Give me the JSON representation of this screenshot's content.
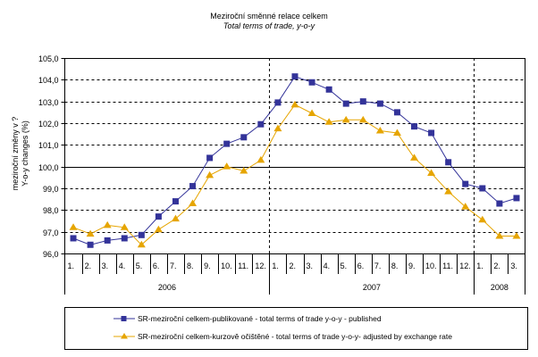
{
  "chart_data": {
    "type": "line",
    "title": "Meziroční směnné relace celkem",
    "subtitle": "Total terms of trade, y-o-y",
    "ylabel_lines": [
      "meziroční změny v ?",
      "Y-o-y changes (%)"
    ],
    "xlabel": "",
    "ylim": [
      96,
      105
    ],
    "yticks": [
      "96,0",
      "97,0",
      "98,0",
      "99,0",
      "100,0",
      "101,0",
      "102,0",
      "103,0",
      "104,0",
      "105,0"
    ],
    "ytick_values": [
      96,
      97,
      98,
      99,
      100,
      101,
      102,
      103,
      104,
      105
    ],
    "reference_line": 100,
    "grid": "horizontal dashed",
    "categories": [
      "1.",
      "2.",
      "3.",
      "4.",
      "5.",
      "6.",
      "7.",
      "8.",
      "9.",
      "10.",
      "11.",
      "12.",
      "1.",
      "2.",
      "3.",
      "4.",
      "5.",
      "6.",
      "7.",
      "8.",
      "9.",
      "10.",
      "11.",
      "12.",
      "1.",
      "2.",
      "3."
    ],
    "year_groups": [
      {
        "label": "2006",
        "count": 12
      },
      {
        "label": "2007",
        "count": 12
      },
      {
        "label": "2008",
        "count": 3
      }
    ],
    "series": [
      {
        "name": "SR-meziroční celkem-publikované - total terms of trade y-o-y - published",
        "color": "#333399",
        "marker": "square",
        "values": [
          96.7,
          96.4,
          96.6,
          96.7,
          96.85,
          97.7,
          98.4,
          99.1,
          100.4,
          101.05,
          101.35,
          101.95,
          102.95,
          104.15,
          103.88,
          103.55,
          102.9,
          103.0,
          102.9,
          102.5,
          101.85,
          101.55,
          100.2,
          99.2,
          99.0,
          98.3,
          98.55
        ]
      },
      {
        "name": "SR-meziroční celkem-kurzově očištěné - total terms of trade y-o-y- adjusted by exchange rate",
        "color": "#E6A500",
        "marker": "triangle",
        "values": [
          97.2,
          96.9,
          97.3,
          97.2,
          96.4,
          97.1,
          97.6,
          98.3,
          99.6,
          100.0,
          99.8,
          100.3,
          101.75,
          102.85,
          102.45,
          102.05,
          102.15,
          102.15,
          101.65,
          101.55,
          100.4,
          99.7,
          98.85,
          98.15,
          97.55,
          96.8,
          96.8
        ]
      }
    ],
    "legend_position": "bottom"
  }
}
